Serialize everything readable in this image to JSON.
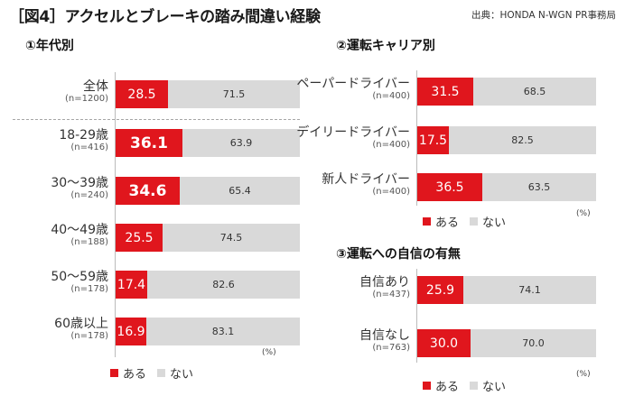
{
  "header": {
    "title": "［図4］アクセルとブレーキの踏み間違い経験",
    "source": "出典：HONDA N-WGN PR事務局"
  },
  "legend": {
    "yes": "ある",
    "no": "ない",
    "unit": "(%)"
  },
  "colors": {
    "yes": "#e0161d",
    "no": "#d9d9d9"
  },
  "chart_data": [
    {
      "type": "bar",
      "orientation": "horizontal",
      "stacked": true,
      "title": "①年代別",
      "unit": "(%)",
      "categories": [
        {
          "label": "全体",
          "n": "(n=1200)",
          "yes": "28.5",
          "no": "71.5"
        },
        {
          "label": "18-29歳",
          "n": "(n=416)",
          "yes": "36.1",
          "no": "63.9",
          "highlight": true
        },
        {
          "label": "30～39歳",
          "n": "(n=240)",
          "yes": "34.6",
          "no": "65.4",
          "highlight": true
        },
        {
          "label": "40～49歳",
          "n": "(n=188)",
          "yes": "25.5",
          "no": "74.5"
        },
        {
          "label": "50～59歳",
          "n": "(n=178)",
          "yes": "17.4",
          "no": "82.6"
        },
        {
          "label": "60歳以上",
          "n": "(n=178)",
          "yes": "16.9",
          "no": "83.1"
        }
      ],
      "series": [
        {
          "name": "ある"
        },
        {
          "name": "ない"
        }
      ],
      "xlim": [
        0,
        100
      ],
      "legend_position": "bottom-left"
    },
    {
      "type": "bar",
      "orientation": "horizontal",
      "stacked": true,
      "title": "②運転キャリア別",
      "unit": "(%)",
      "categories": [
        {
          "label": "ペーパードライバー",
          "n": "(n=400)",
          "yes": "31.5",
          "no": "68.5"
        },
        {
          "label": "デイリードライバー",
          "n": "(n=400)",
          "yes": "17.5",
          "no": "82.5"
        },
        {
          "label": "新人ドライバー",
          "n": "(n=400)",
          "yes": "36.5",
          "no": "63.5"
        }
      ],
      "series": [
        {
          "name": "ある"
        },
        {
          "name": "ない"
        }
      ],
      "xlim": [
        0,
        100
      ],
      "legend_position": "bottom-left"
    },
    {
      "type": "bar",
      "orientation": "horizontal",
      "stacked": true,
      "title": "③運転への自信の有無",
      "unit": "(%)",
      "categories": [
        {
          "label": "自信あり",
          "n": "(n=437)",
          "yes": "25.9",
          "no": "74.1"
        },
        {
          "label": "自信なし",
          "n": "(n=763)",
          "yes": "30.0",
          "no": "70.0"
        }
      ],
      "series": [
        {
          "name": "ある"
        },
        {
          "name": "ない"
        }
      ],
      "xlim": [
        0,
        100
      ],
      "legend_position": "bottom-left"
    }
  ]
}
